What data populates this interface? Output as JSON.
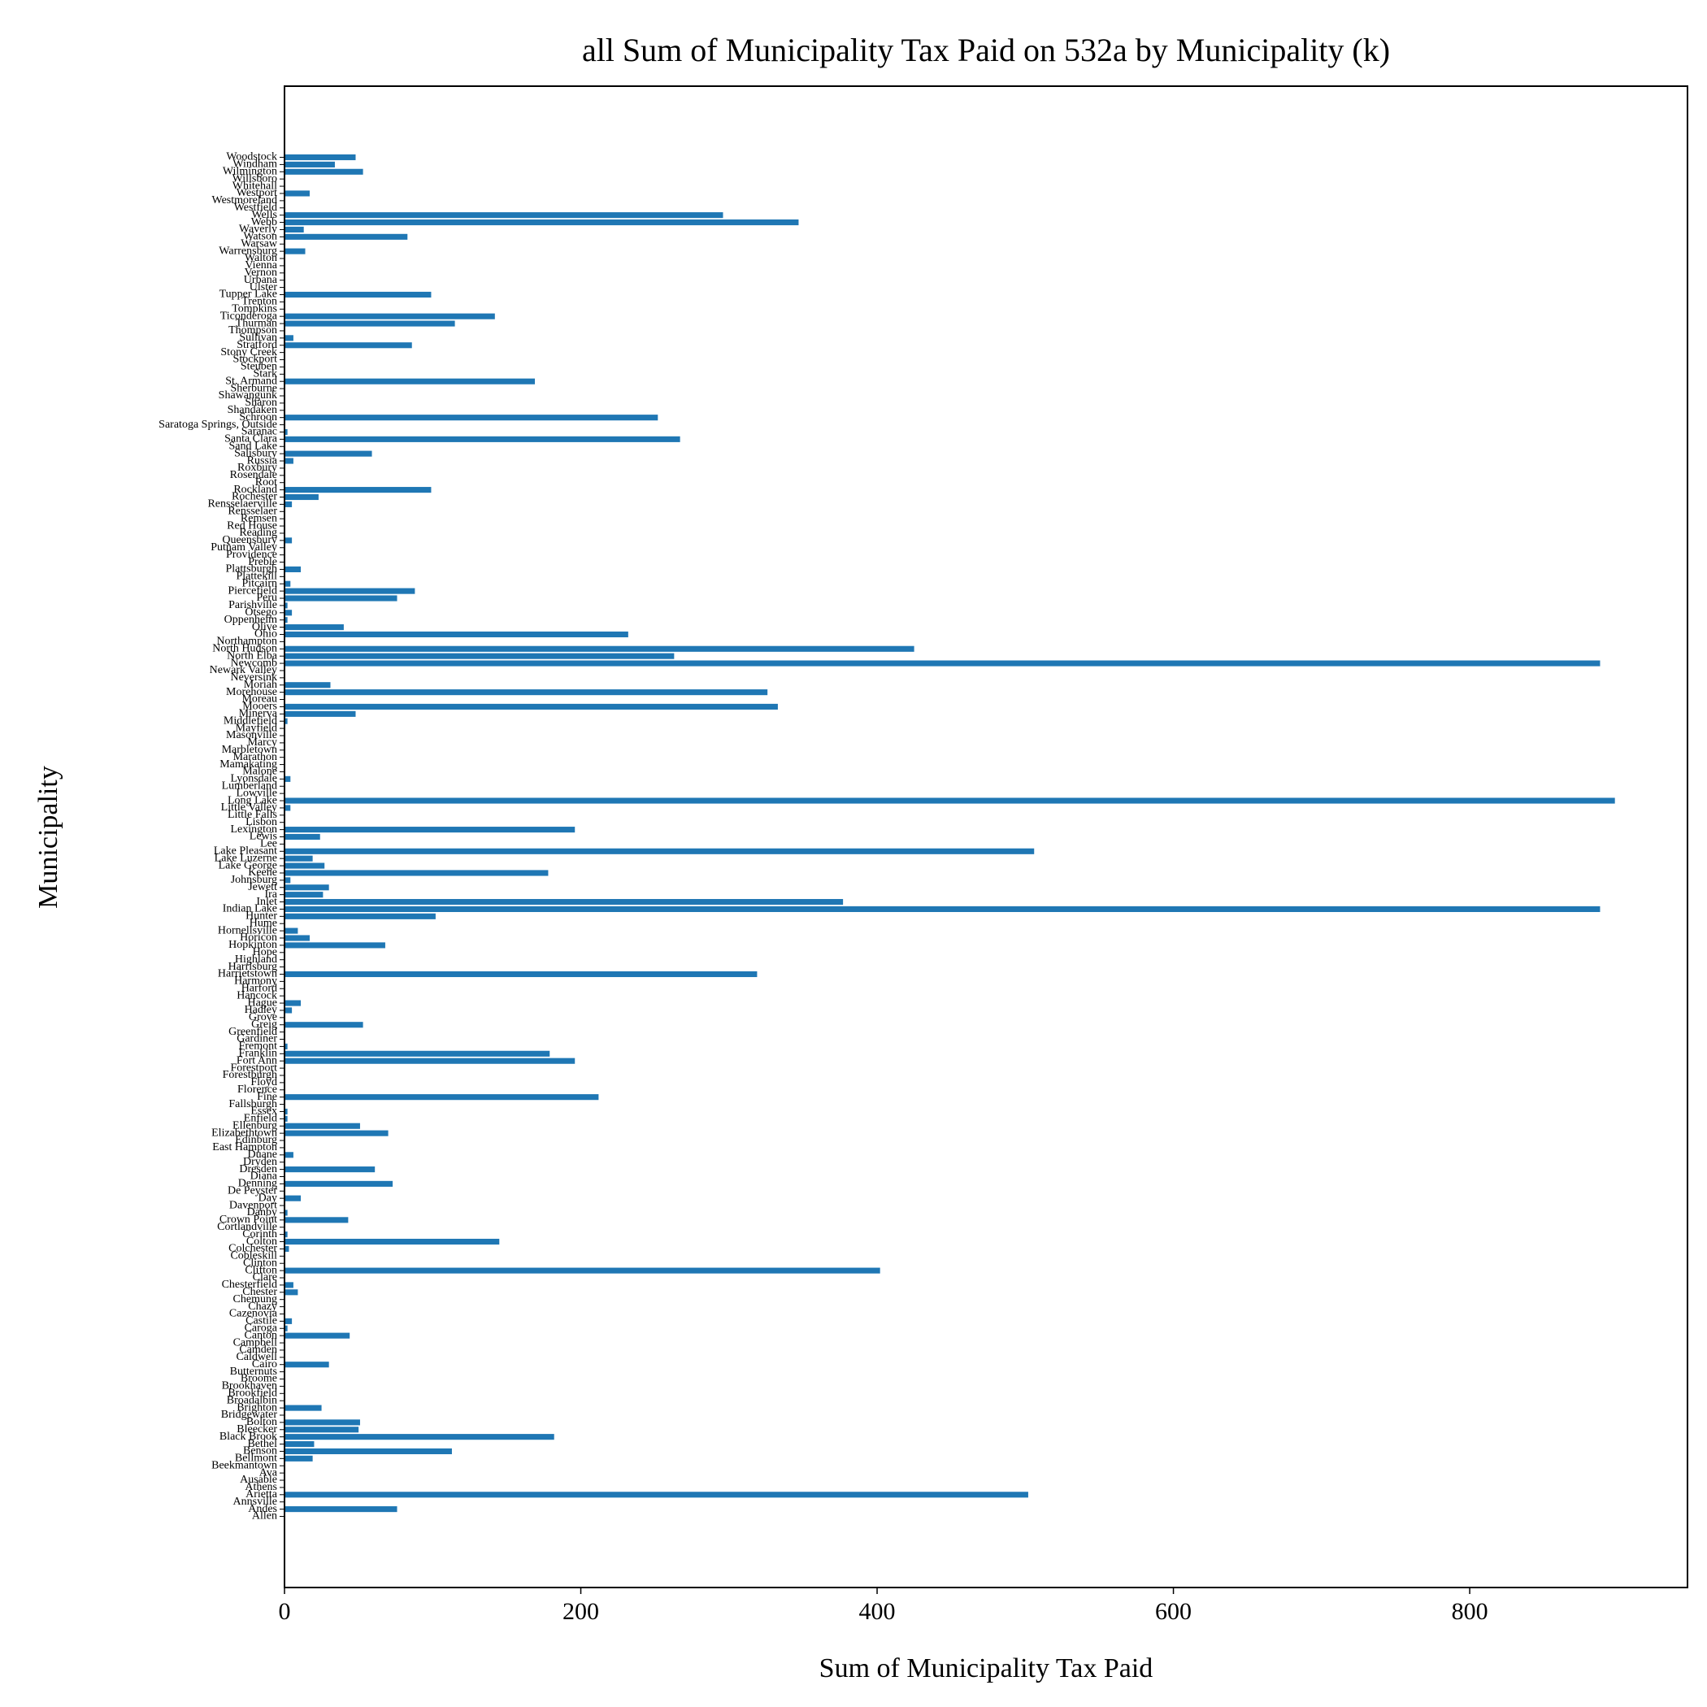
{
  "chart_data": {
    "type": "barh",
    "title": "all Sum of Municipality Tax Paid on 532a by Municipality (k)",
    "xlabel": "Sum of Municipality Tax Paid",
    "ylabel": "Municipality",
    "color": "#1f77b4",
    "xlim": [
      0,
      947
    ],
    "xticks": [
      0,
      200,
      400,
      600,
      800
    ],
    "categories": [
      "Allen",
      "Andes",
      "Annsville",
      "Arietta",
      "Athens",
      "Ausable",
      "Ava",
      "Beekmantown",
      "Bellmont",
      "Benson",
      "Bethel",
      "Black Brook",
      "Bleecker",
      "Bolton",
      "Bridgewater",
      "Brighton",
      "Broadalbin",
      "Brookfield",
      "Brookhaven",
      "Broome",
      "Butternuts",
      "Cairo",
      "Caldwell",
      "Camden",
      "Campbell",
      "Canton",
      "Caroga",
      "Castile",
      "Cazenovia",
      "Chazy",
      "Chemung",
      "Chester",
      "Chesterfield",
      "Clare",
      "Clifton",
      "Clinton",
      "Cobleskill",
      "Colchester",
      "Colton",
      "Corinth",
      "Cortlandville",
      "Crown Point",
      "Danby",
      "Davenport",
      "Day",
      "De Peyster",
      "Denning",
      "Diana",
      "Dresden",
      "Dryden",
      "Duane",
      "East Hampton",
      "Edinburg",
      "Elizabethtown",
      "Ellenburg",
      "Enfield",
      "Essex",
      "Fallsburgh",
      "Fine",
      "Florence",
      "Floyd",
      "Forestburgh",
      "Forestport",
      "Fort Ann",
      "Franklin",
      "Fremont",
      "Gardiner",
      "Greenfield",
      "Greig",
      "Grove",
      "Hadley",
      "Hague",
      "Hancock",
      "Harford",
      "Harmony",
      "Harrietstown",
      "Harrisburg",
      "Highland",
      "Hope",
      "Hopkinton",
      "Horicon",
      "Hornellsville",
      "Hume",
      "Hunter",
      "Indian Lake",
      "Inlet",
      "Ira",
      "Jewett",
      "Johnsburg",
      "Keene",
      "Lake George",
      "Lake Luzerne",
      "Lake Pleasant",
      "Lee",
      "Lewis",
      "Lexington",
      "Lisbon",
      "Little Falls",
      "Little Valley",
      "Long Lake",
      "Lowville",
      "Lumberland",
      "Lyonsdale",
      "Malone",
      "Mamakating",
      "Marathon",
      "Marbletown",
      "Marcy",
      "Masonville",
      "Mayfield",
      "Middlefield",
      "Minerva",
      "Mooers",
      "Moreau",
      "Morehouse",
      "Moriah",
      "Neversink",
      "Newark Valley",
      "Newcomb",
      "North Elba",
      "North Hudson",
      "Northampton",
      "Ohio",
      "Olive",
      "Oppenheim",
      "Otsego",
      "Parishville",
      "Peru",
      "Piercefield",
      "Pitcairn",
      "Plattekill",
      "Plattsburgh",
      "Preble",
      "Providence",
      "Putnam Valley",
      "Queensbury",
      "Reading",
      "Red House",
      "Remsen",
      "Rensselaer",
      "Rensselaerville",
      "Rochester",
      "Rockland",
      "Root",
      "Rosendale",
      "Roxbury",
      "Russia",
      "Salisbury",
      "Sand Lake",
      "Santa Clara",
      "Saranac",
      "Saratoga Springs, Outside",
      "Schroon",
      "Shandaken",
      "Sharon",
      "Shawangunk",
      "Sherburne",
      "St. Armand",
      "Stark",
      "Steuben",
      "Stockport",
      "Stony Creek",
      "Stratford",
      "Sullivan",
      "Thompson",
      "Thurman",
      "Ticonderoga",
      "Tompkins",
      "Trenton",
      "Tupper Lake",
      "Ulster",
      "Urbana",
      "Vernon",
      "Vienna",
      "Walton",
      "Warrensburg",
      "Warsaw",
      "Watson",
      "Waverly",
      "Webb",
      "Wells",
      "Westfield",
      "Westmoreland",
      "Westport",
      "Whitehall",
      "Willsboro",
      "Wilmington",
      "Windham",
      "Woodstock"
    ],
    "values": [
      0,
      76,
      0,
      502,
      0,
      0,
      0,
      0,
      19,
      113,
      20,
      182,
      50,
      51,
      0,
      25,
      0,
      0,
      0,
      0,
      0,
      30,
      0,
      0,
      0,
      44,
      2,
      5,
      0,
      0,
      0,
      9,
      6,
      0,
      402,
      0,
      0,
      3,
      145,
      2,
      0,
      43,
      2,
      0,
      11,
      0,
      73,
      0,
      61,
      0,
      6,
      0,
      0,
      70,
      51,
      2,
      2,
      0,
      212,
      0,
      0,
      0,
      0,
      196,
      179,
      2,
      0,
      0,
      53,
      0,
      5,
      11,
      0,
      0,
      0,
      319,
      0,
      0,
      0,
      68,
      17,
      9,
      0,
      102,
      888,
      377,
      26,
      30,
      4,
      178,
      27,
      19,
      506,
      0,
      24,
      196,
      0,
      0,
      4,
      898,
      0,
      0,
      4,
      0,
      0,
      0,
      0,
      0,
      0,
      0,
      2,
      48,
      333,
      0,
      326,
      31,
      0,
      0,
      888,
      263,
      425,
      0,
      232,
      40,
      2,
      5,
      2,
      76,
      88,
      4,
      0,
      11,
      0,
      0,
      0,
      5,
      0,
      0,
      0,
      0,
      5,
      23,
      99,
      0,
      0,
      0,
      6,
      59,
      0,
      267,
      2,
      0,
      252,
      0,
      0,
      0,
      0,
      169,
      0,
      0,
      0,
      0,
      86,
      6,
      0,
      115,
      142,
      0,
      0,
      99,
      0,
      0,
      0,
      0,
      0,
      14,
      0,
      83,
      13,
      347,
      296,
      0,
      0,
      17,
      0,
      0,
      53,
      34,
      48
    ]
  }
}
